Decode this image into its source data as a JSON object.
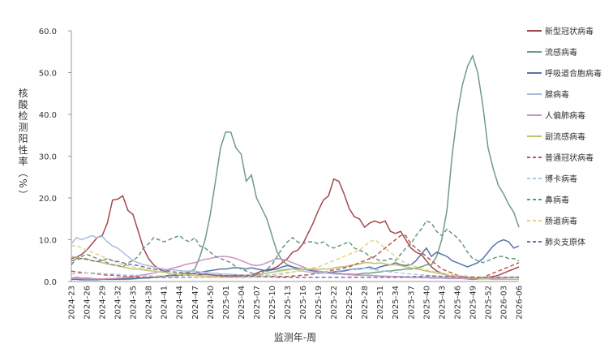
{
  "chart_data": {
    "type": "line",
    "ylabel": "核酸检测阳性率（%）",
    "xlabel": "监测年-周",
    "categories": [
      "2024-23",
      null,
      null,
      "2024-26",
      null,
      null,
      "2024-29",
      null,
      null,
      "2024-32",
      null,
      null,
      "2024-35",
      null,
      null,
      "2024-38",
      null,
      null,
      "2024-41",
      null,
      null,
      "2024-44",
      null,
      null,
      "2024-47",
      null,
      null,
      "2024-50",
      null,
      null,
      "2025-01",
      null,
      null,
      "2025-04",
      null,
      null,
      "2025-07",
      null,
      null,
      "2025-10",
      null,
      null,
      "2025-13",
      null,
      null,
      "2025-16",
      null,
      null,
      "2025-19",
      null,
      null,
      "2025-22",
      null,
      null,
      "2025-25",
      null,
      null,
      "2025-28",
      null,
      null,
      "2025-31",
      null,
      null,
      "2025-34",
      null,
      null,
      "2025-37",
      null,
      null,
      "2025-40",
      null,
      null,
      "2025-43",
      null,
      null,
      "2025-46",
      null,
      null,
      "2025-49",
      null,
      null,
      "2025-52",
      null,
      null,
      "2026-03",
      null,
      null,
      "2026-06"
    ],
    "ylim": [
      0,
      60
    ],
    "yticks": [
      {
        "value": 0,
        "label": "0.0"
      },
      {
        "value": 10,
        "label": "10.0"
      },
      {
        "value": 20,
        "label": "20.0"
      },
      {
        "value": 30,
        "label": "30.0"
      },
      {
        "value": 40,
        "label": "40.0"
      },
      {
        "value": 50,
        "label": "50.0"
      },
      {
        "value": 60,
        "label": "60.0"
      }
    ],
    "grid": false,
    "legend": "right",
    "series": [
      {
        "name": "新型冠状病毒",
        "color": "#a3484c",
        "dashed": false,
        "values": [
          5.5,
          5.8,
          6.5,
          7.5,
          9,
          10.5,
          11,
          14,
          19.5,
          19.7,
          20.5,
          17,
          16,
          12,
          8,
          5.5,
          4,
          3,
          2.5,
          2,
          1.8,
          1.6,
          1.5,
          1.5,
          1.5,
          1.6,
          1.8,
          1.6,
          1.5,
          1.4,
          1.3,
          1.2,
          1.3,
          1.2,
          1.5,
          1.5,
          2,
          2.5,
          2.8,
          3,
          3.5,
          4.5,
          5.5,
          7,
          7.5,
          9,
          11.5,
          14,
          17,
          19.5,
          20.5,
          24.5,
          24,
          21,
          17.5,
          15.5,
          15,
          13,
          14,
          14.5,
          14,
          14.5,
          12,
          11.5,
          12,
          10,
          8,
          7,
          6.5,
          5,
          3.5,
          2.5,
          2,
          1.5,
          1.2,
          1,
          0.8,
          0.6,
          0.5,
          0.6,
          0.8,
          1,
          1.2,
          1.5,
          2,
          2.5,
          3,
          3.5
        ]
      },
      {
        "name": "流感病毒",
        "color": "#6f9c86",
        "dashed": false,
        "values": [
          0.8,
          1,
          0.8,
          0.8,
          0.7,
          0.6,
          0.6,
          0.6,
          0.5,
          0.5,
          0.5,
          0.5,
          0.6,
          0.7,
          0.8,
          0.8,
          1,
          1.2,
          1.3,
          1.5,
          1.5,
          1.8,
          2,
          2.3,
          3,
          6,
          10,
          16,
          24,
          32,
          35.8,
          35.7,
          32,
          30.5,
          24,
          25.5,
          20,
          17.5,
          15,
          11,
          7,
          5,
          4,
          3.5,
          3,
          3,
          2.8,
          2.5,
          2.5,
          2.3,
          2.2,
          2,
          2,
          1.8,
          1.8,
          1.7,
          1.8,
          2,
          2,
          2.2,
          2.3,
          2.5,
          2.5,
          2.7,
          2.8,
          3,
          3,
          3.2,
          3.5,
          4,
          4,
          6,
          10,
          17,
          30,
          40,
          47,
          51.5,
          54,
          50,
          42,
          32,
          27,
          23,
          21,
          18.5,
          16.5,
          13
        ]
      },
      {
        "name": "呼吸道合胞病毒",
        "color": "#5873aa",
        "dashed": false,
        "values": [
          0.5,
          0.5,
          0.4,
          0.4,
          0.4,
          0.4,
          0.5,
          0.5,
          0.5,
          0.6,
          0.6,
          0.7,
          0.8,
          0.8,
          0.9,
          1,
          1,
          1.1,
          1.2,
          1.3,
          1.4,
          1.5,
          1.6,
          1.8,
          2,
          2.2,
          2.4,
          2.6,
          2.8,
          3,
          3,
          3.2,
          3.3,
          3.2,
          3,
          3.3,
          3,
          2.8,
          2.5,
          2.8,
          3,
          3.5,
          3.8,
          3.5,
          3.2,
          3,
          2.8,
          2.5,
          2.3,
          2.2,
          2.2,
          2.3,
          2.5,
          2.5,
          2.8,
          3,
          3,
          3.2,
          3.5,
          3,
          3.5,
          3.8,
          4,
          4.5,
          4,
          3.8,
          4,
          5,
          6.5,
          8,
          6,
          7,
          6.5,
          6,
          5,
          4.5,
          4,
          3.5,
          4,
          4.5,
          5.5,
          7,
          8.5,
          9.5,
          10,
          9.5,
          8,
          8.5
        ]
      },
      {
        "name": "腺病毒",
        "color": "#a9bcdb",
        "dashed": false,
        "values": [
          9,
          10.5,
          10,
          10.5,
          11,
          10.5,
          10.8,
          9.5,
          8.5,
          8,
          7,
          6,
          5,
          4.5,
          4,
          3.8,
          3.5,
          3.2,
          3,
          2.8,
          2.8,
          2.6,
          2.5,
          2.5,
          2.5,
          2.3,
          2.2,
          2,
          2,
          1.8,
          1.8,
          1.7,
          1.6,
          1.5,
          1.5,
          1.5,
          1.6,
          1.8,
          2,
          2.2,
          2.5,
          2.8,
          3,
          3,
          2.8,
          2.5,
          2.3,
          2.2,
          2,
          2,
          2,
          1.8,
          1.8,
          1.7,
          1.6,
          1.5,
          1.5,
          1.5,
          1.4,
          1.4,
          1.3,
          1.3,
          1.2,
          1.2,
          1.2,
          1.1,
          1,
          1,
          1,
          1,
          1,
          1,
          0.9,
          0.9,
          0.9,
          0.8,
          0.8,
          0.8,
          0.8,
          0.8,
          0.8,
          0.8,
          0.9,
          0.9,
          1,
          1,
          1,
          1
        ]
      },
      {
        "name": "人偏肺病毒",
        "color": "#cb92c3",
        "dashed": false,
        "values": [
          0.8,
          0.8,
          0.7,
          0.6,
          0.6,
          0.6,
          0.6,
          0.7,
          0.7,
          0.8,
          0.9,
          1,
          1.2,
          1.4,
          1.6,
          1.8,
          2,
          2.3,
          2.6,
          3,
          3.3,
          3.6,
          4,
          4.3,
          4.5,
          5,
          5.3,
          5.5,
          5.8,
          6,
          6,
          5.8,
          5.5,
          5,
          4.5,
          4,
          3.8,
          4,
          4.5,
          5,
          5.5,
          5.3,
          5,
          4.5,
          4,
          3.5,
          3,
          2.8,
          2.5,
          2.3,
          2,
          2,
          1.8,
          1.8,
          1.7,
          1.6,
          1.5,
          1.5,
          1.5,
          1.4,
          1.3,
          1.2,
          1.2,
          1.2,
          1.1,
          1,
          1,
          1,
          0.9,
          0.9,
          0.8,
          0.8,
          0.8,
          0.7,
          0.7,
          0.7,
          0.7,
          0.6,
          0.6,
          0.6,
          0.6,
          0.7,
          0.7,
          0.8,
          0.8,
          0.9,
          1,
          1
        ]
      },
      {
        "name": "副流感病毒",
        "color": "#bcc273",
        "dashed": false,
        "values": [
          6,
          5.8,
          5.5,
          5.5,
          5,
          4.8,
          4.5,
          4.2,
          4,
          3.8,
          3.5,
          3.2,
          3,
          3,
          2.8,
          2.6,
          2.5,
          2.3,
          2.2,
          2,
          1.9,
          1.8,
          1.7,
          1.6,
          1.5,
          1.4,
          1.3,
          1.2,
          1.1,
          1,
          1,
          1,
          1,
          1.1,
          1.2,
          1.3,
          1.5,
          1.7,
          2,
          2.2,
          2.4,
          2.6,
          2.8,
          3,
          3,
          3,
          3,
          3,
          3,
          3,
          3,
          3.2,
          3.5,
          3.5,
          3.8,
          4,
          4.2,
          4.5,
          4.5,
          4.3,
          4.5,
          4.2,
          4,
          4,
          3.8,
          3.5,
          3.3,
          3,
          2.8,
          2.5,
          2.3,
          2,
          1.8,
          1.5,
          1.3,
          1.1,
          1,
          0.9,
          0.8,
          0.7,
          0.6,
          0.6,
          0.5,
          0.5,
          0.5,
          0.5,
          0.5,
          0.5
        ]
      },
      {
        "name": "普通冠状病毒",
        "color": "#c25454",
        "dashed": true,
        "values": [
          2.5,
          2.3,
          2.2,
          2,
          2,
          1.8,
          1.7,
          1.5,
          1.5,
          1.4,
          1.3,
          1.2,
          1.2,
          1.1,
          1,
          1,
          1,
          1,
          1,
          1,
          1,
          1,
          1,
          1,
          1,
          1,
          1,
          1,
          1.1,
          1.2,
          1.3,
          1.4,
          1.5,
          1.5,
          1.5,
          1.5,
          1.5,
          1.4,
          1.3,
          1.2,
          1.2,
          1.2,
          1.2,
          1.3,
          1.4,
          1.5,
          1.6,
          1.8,
          2,
          2.2,
          2.5,
          2.8,
          3,
          3.3,
          3.5,
          4,
          4.5,
          5,
          5.5,
          6,
          7,
          8,
          9,
          10,
          11,
          11,
          9,
          8,
          7,
          6,
          5,
          4,
          3,
          2.5,
          2,
          1.5,
          1.2,
          1,
          0.8,
          0.8,
          1,
          1.5,
          2,
          2.5,
          3,
          3.5,
          4,
          4.5
        ]
      },
      {
        "name": "博卡病毒",
        "color": "#abcbe2",
        "dashed": true,
        "values": [
          1.8,
          1.9,
          2,
          2,
          2.1,
          2,
          1.9,
          1.8,
          1.8,
          1.7,
          1.6,
          1.5,
          1.5,
          1.5,
          1.4,
          1.4,
          1.3,
          1.3,
          1.3,
          1.2,
          1.2,
          1.2,
          1.1,
          1.1,
          1,
          1,
          1,
          1,
          1,
          1,
          1,
          1,
          1,
          1,
          1.1,
          1.2,
          1.3,
          1.4,
          1.5,
          1.6,
          1.8,
          2,
          2.2,
          2.3,
          2.5,
          2.5,
          2.4,
          2.3,
          2.2,
          2.2,
          2.3,
          2.5,
          2.6,
          2.8,
          3,
          3,
          3.2,
          3.2,
          3,
          2.8,
          2.6,
          2.5,
          2.3,
          2.2,
          2,
          1.9,
          1.8,
          1.7,
          1.6,
          1.5,
          1.4,
          1.3,
          1.2,
          1.1,
          1,
          1,
          0.9,
          0.9,
          0.9,
          0.9,
          0.9,
          0.9,
          1,
          1,
          1,
          1,
          1.1,
          1.1
        ]
      },
      {
        "name": "鼻病毒",
        "color": "#63997f",
        "dashed": true,
        "values": [
          4,
          5.5,
          6,
          6.5,
          6,
          5.5,
          5,
          4.5,
          4,
          3.8,
          3.5,
          4.5,
          5,
          6,
          8,
          9,
          10.5,
          10,
          9.5,
          10,
          10.5,
          11,
          10,
          9.5,
          10.5,
          8.5,
          8,
          7,
          6,
          5.5,
          5,
          4.5,
          3.5,
          3,
          2.5,
          2,
          1.8,
          2,
          3,
          4,
          6,
          8,
          9.5,
          10.5,
          9.5,
          9,
          9.5,
          9.5,
          9,
          9.5,
          8.5,
          8,
          8.5,
          9,
          9.5,
          8,
          7.5,
          7,
          6,
          5.5,
          5,
          5,
          5.5,
          5,
          6.5,
          8,
          9,
          11,
          12.5,
          14.5,
          14,
          12,
          11,
          12.5,
          11.5,
          10.5,
          9,
          7,
          5.5,
          5,
          4.5,
          5,
          5.5,
          6,
          6,
          5.5,
          5.5,
          5
        ]
      },
      {
        "name": "肠道病毒",
        "color": "#e2d485",
        "dashed": true,
        "values": [
          8.5,
          8.7,
          8,
          7.5,
          7,
          6.5,
          6,
          5.5,
          5,
          4.5,
          4,
          3.8,
          3.5,
          3.2,
          3,
          2.8,
          2.6,
          2.4,
          2.2,
          2,
          1.8,
          1.6,
          1.5,
          1.4,
          1.3,
          1.2,
          1.1,
          1,
          1,
          1,
          0.9,
          0.9,
          0.9,
          0.9,
          1,
          1,
          1,
          1.1,
          1.2,
          1.3,
          1.5,
          1.7,
          2,
          2.2,
          2.5,
          2.8,
          3,
          3.3,
          3.5,
          4,
          4.5,
          5,
          5.5,
          6,
          6.5,
          7,
          7.5,
          8.5,
          9.5,
          10,
          9,
          8,
          7,
          6,
          5,
          4.5,
          4,
          3.5,
          3,
          2.8,
          2.5,
          2.2,
          2,
          1.8,
          1.6,
          1.5,
          1.4,
          1.3,
          1.2,
          1.1,
          1,
          1,
          1,
          1,
          0.9,
          0.9,
          0.9,
          0.9
        ]
      },
      {
        "name": "肺炎支原体",
        "color": "#7c6d9c",
        "dashed": true,
        "values": [
          5,
          5.2,
          5.5,
          5.3,
          5,
          4.8,
          5,
          5.5,
          5,
          4.8,
          4.5,
          4.2,
          4,
          3.8,
          3.5,
          3.2,
          3,
          2.8,
          2.6,
          2.5,
          2.3,
          2.2,
          2,
          2,
          1.9,
          1.8,
          1.7,
          1.6,
          1.5,
          1.5,
          1.4,
          1.4,
          1.3,
          1.3,
          1.2,
          1.2,
          1.2,
          1.1,
          1.1,
          1.1,
          1,
          1,
          1,
          1,
          1,
          1,
          1,
          1,
          1,
          1,
          1,
          1,
          1,
          1,
          1,
          1,
          1,
          1,
          1,
          1,
          1,
          1,
          1,
          1,
          1,
          1.1,
          1.1,
          1.2,
          1.2,
          1.3,
          1.3,
          1.3,
          1.2,
          1.2,
          1.1,
          1.1,
          1,
          1,
          1,
          1,
          1,
          1,
          1,
          1,
          1,
          1,
          1,
          1
        ]
      }
    ]
  }
}
